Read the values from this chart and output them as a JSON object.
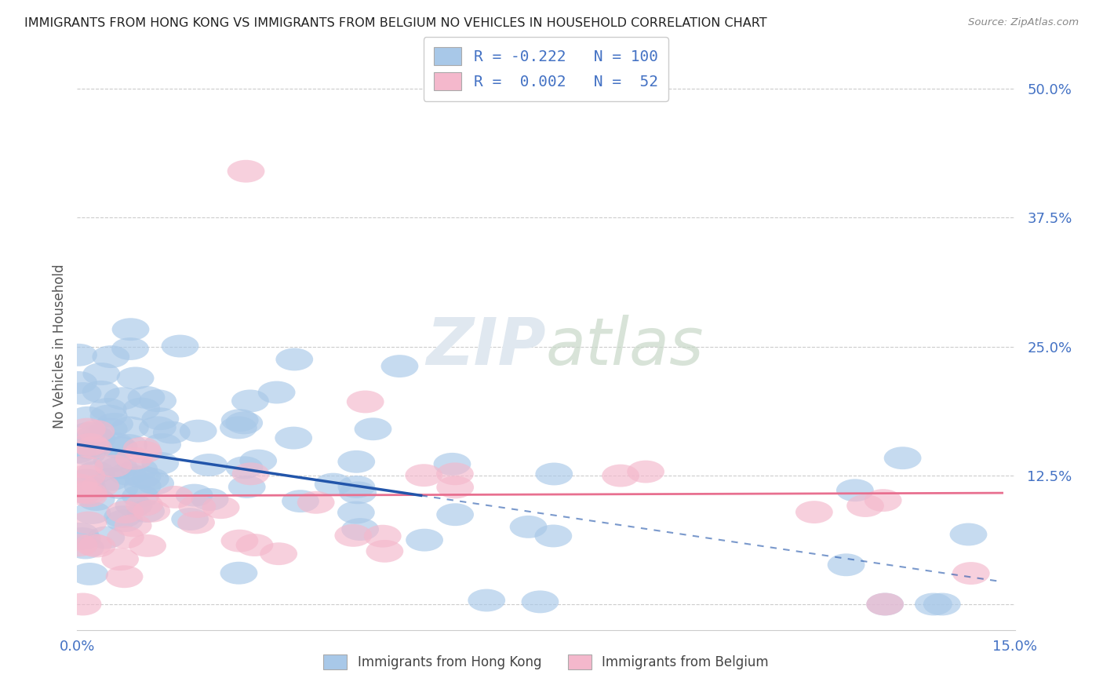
{
  "title": "IMMIGRANTS FROM HONG KONG VS IMMIGRANTS FROM BELGIUM NO VEHICLES IN HOUSEHOLD CORRELATION CHART",
  "source": "Source: ZipAtlas.com",
  "ylabel": "No Vehicles in Household",
  "y_ticks": [
    0.0,
    0.125,
    0.25,
    0.375,
    0.5
  ],
  "y_tick_labels": [
    "",
    "12.5%",
    "25.0%",
    "37.5%",
    "50.0%"
  ],
  "xlim": [
    0.0,
    0.15
  ],
  "ylim": [
    -0.025,
    0.525
  ],
  "color_hk": "#a8c8e8",
  "color_be": "#f4b8cc",
  "color_text_blue": "#4472c4",
  "trendline_hk_color": "#2255aa",
  "trendline_be_color": "#e87090",
  "background_color": "#ffffff",
  "grid_color": "#cccccc",
  "watermark_color": "#e0e8f0",
  "hk_intercept": 0.155,
  "hk_slope": -0.9,
  "be_intercept": 0.105,
  "be_slope": 0.02,
  "hk_trend_solid_end": 0.055,
  "hk_trend_dash_start": 0.055,
  "hk_trend_dash_end": 0.148
}
